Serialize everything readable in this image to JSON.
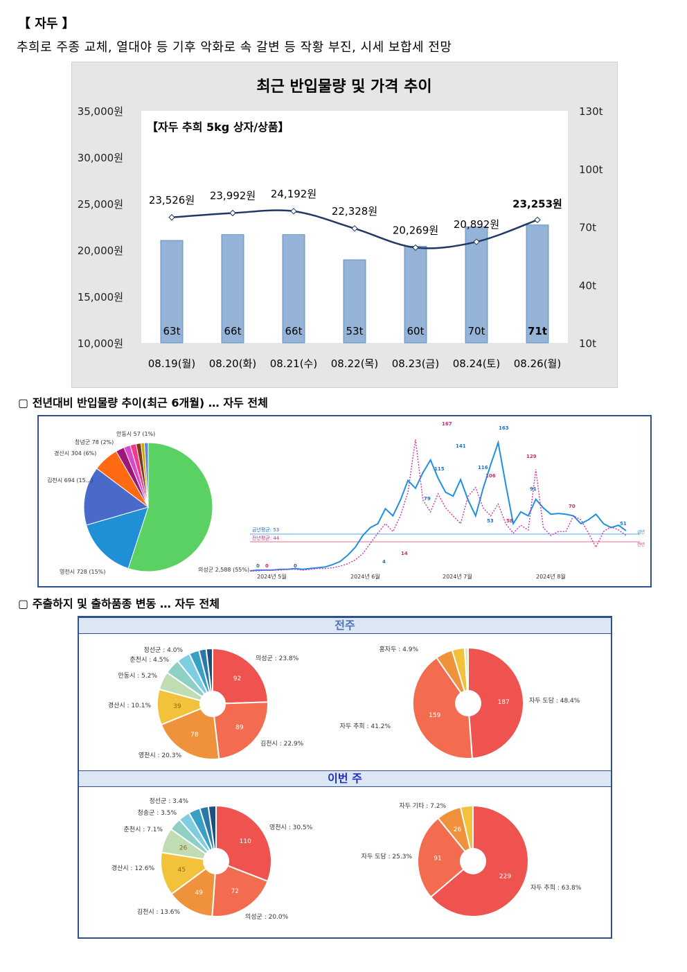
{
  "section": {
    "title": "【 자두 】",
    "description": "추희로 주종 교체, 열대야 등 기후 악화로 속 갈변 등 작황 부진, 시세 보합세 전망"
  },
  "chart_data": [
    {
      "type": "bar",
      "title": "최근 반입물량 및 가격 추이",
      "subtitle": "【자두 추희 5kg 상자/상품】",
      "categories": [
        "08.19(월)",
        "08.20(화)",
        "08.21(수)",
        "08.22(목)",
        "08.23(금)",
        "08.24(토)",
        "08.26(월)"
      ],
      "y_left_ticks": [
        "35,000원",
        "30,000원",
        "25,000원",
        "20,000원",
        "15,000원",
        "10,000원"
      ],
      "y_right_ticks": [
        "130t",
        "100t",
        "70t",
        "40t",
        "10t"
      ],
      "ylim_left": [
        10000,
        35000
      ],
      "ylim_right": [
        10,
        130
      ],
      "series": [
        {
          "name": "반입물량",
          "values": [
            63,
            66,
            66,
            53,
            60,
            70,
            71
          ],
          "labels": [
            "63t",
            "66t",
            "66t",
            "53t",
            "60t",
            "70t",
            "71t"
          ]
        },
        {
          "name": "가격",
          "values": [
            23526,
            23992,
            24192,
            22328,
            20269,
            20892,
            23253
          ],
          "labels": [
            "23,526원",
            "23,992원",
            "24,192원",
            "22,328원",
            "20,269원",
            "20,892원",
            "23,253원"
          ]
        }
      ],
      "colors": {
        "bar": "#95b3d7",
        "bar_border": "#4f81bd",
        "line": "#1f3864"
      }
    },
    {
      "type": "pie",
      "title": "전년대비 반입물량 추이(최근 6개월) … 자두 전체",
      "slices": [
        {
          "label": "의성군 2,588 (55%)",
          "value": 2588,
          "color": "#5cd163"
        },
        {
          "label": "영천시 728 (15%)",
          "value": 728,
          "color": "#1f8fd6"
        },
        {
          "label": "김천시 694 (15...)",
          "value": 694,
          "color": "#4a6ac9"
        },
        {
          "label": "경산시 304 (6%)",
          "value": 304,
          "color": "#ff6a12"
        },
        {
          "label": "",
          "value": 100,
          "color": "#a0157a"
        },
        {
          "label": "창녕군 78 (2%)",
          "value": 78,
          "color": "#d94ac9"
        },
        {
          "label": "",
          "value": 70,
          "color": "#f2388a"
        },
        {
          "label": "안동시 57 (1%)",
          "value": 57,
          "color": "#7a3a1a"
        },
        {
          "label": "",
          "value": 40,
          "color": "#d6a400"
        },
        {
          "label": "",
          "value": 45,
          "color": "#5a8ad6"
        }
      ]
    },
    {
      "type": "line",
      "series": [
        {
          "name": "금년",
          "values": [
            0,
            1,
            1,
            1,
            2,
            2,
            3,
            2,
            3,
            4,
            5,
            8,
            12,
            20,
            30,
            45,
            55,
            60,
            79,
            70,
            90,
            115,
            105,
            125,
            141,
            118,
            100,
            95,
            116,
            90,
            70,
            105,
            135,
            163,
            110,
            60,
            75,
            70,
            91,
            80,
            72,
            73,
            72,
            70,
            60,
            65,
            72,
            60,
            55,
            58,
            51
          ],
          "color": "#1f8fe0"
        },
        {
          "name": "전년",
          "values": [
            0,
            0,
            1,
            1,
            1,
            2,
            2,
            1,
            2,
            3,
            3,
            4,
            6,
            9,
            14,
            22,
            35,
            48,
            60,
            50,
            70,
            100,
            167,
            90,
            75,
            98,
            80,
            70,
            60,
            95,
            106,
            80,
            70,
            85,
            60,
            48,
            58,
            52,
            129,
            55,
            45,
            50,
            50,
            70,
            65,
            48,
            30,
            50,
            56,
            52,
            45
          ],
          "color": "#cc33aa"
        }
      ],
      "point_labels": [
        "0",
        "0",
        "0",
        "4",
        "79",
        "115",
        "167",
        "141",
        "116",
        "106",
        "163",
        "53",
        "129",
        "91",
        "70",
        "51",
        "58",
        "14"
      ],
      "avg_labels": [
        "금년평균: 53",
        "전년평균: 44"
      ],
      "legend": [
        "금년",
        "전년"
      ],
      "x_ticks": [
        "2024년 5월",
        "2024년 6월",
        "2024년 7월",
        "2024년 8월"
      ]
    },
    {
      "type": "pie",
      "panel": "전주",
      "slices": [
        {
          "label": "의성군 : 23.8%",
          "value": 92,
          "value_label": "92",
          "color": "#ef5350"
        },
        {
          "label": "김천시 : 22.9%",
          "value": 89,
          "value_label": "89",
          "color": "#f36c4f"
        },
        {
          "label": "영천시 : 20.3%",
          "value": 78,
          "value_label": "78",
          "color": "#f0923c"
        },
        {
          "label": "경산시 : 10.1%",
          "value": 39,
          "value_label": "39",
          "color": "#f2c23a"
        },
        {
          "label": "안동시 : 5.2%",
          "value": 20,
          "value_label": "",
          "color": "#bfdcb2"
        },
        {
          "label": "춘천시 : 4.5%",
          "value": 17,
          "value_label": "",
          "color": "#8fd0c4"
        },
        {
          "label": "정선군 : 4.0%",
          "value": 15,
          "value_label": "",
          "color": "#7fcde0"
        },
        {
          "label": "",
          "value": 11,
          "value_label": "",
          "color": "#3a9fc4"
        },
        {
          "label": "",
          "value": 8,
          "value_label": "",
          "color": "#2a78a8"
        },
        {
          "label": "",
          "value": 7,
          "value_label": "",
          "color": "#1f4f80"
        }
      ]
    },
    {
      "type": "pie",
      "panel": "전주",
      "slices": [
        {
          "label": "자두 도담 : 48.4%",
          "value": 187,
          "value_label": "187",
          "color": "#ef5350"
        },
        {
          "label": "자두 추희 : 41.2%",
          "value": 159,
          "value_label": "159",
          "color": "#f36c4f"
        },
        {
          "label": "홍자두 : 4.9%",
          "value": 19,
          "value_label": "",
          "color": "#f0923c"
        },
        {
          "label": "",
          "value": 14,
          "value_label": "",
          "color": "#f2c23a"
        },
        {
          "label": "",
          "value": 4,
          "value_label": "",
          "color": "#e8e4c8"
        }
      ]
    },
    {
      "type": "pie",
      "panel": "이번 주",
      "slices": [
        {
          "label": "영천시 : 30.5%",
          "value": 110,
          "value_label": "110",
          "color": "#ef5350"
        },
        {
          "label": "의성군 : 20.0%",
          "value": 72,
          "value_label": "72",
          "color": "#f36c4f"
        },
        {
          "label": "김천시 : 13.6%",
          "value": 49,
          "value_label": "49",
          "color": "#f0923c"
        },
        {
          "label": "경산시 : 12.6%",
          "value": 45,
          "value_label": "45",
          "color": "#f2c23a"
        },
        {
          "label": "춘천시 : 7.1%",
          "value": 26,
          "value_label": "26",
          "color": "#bfdcb2"
        },
        {
          "label": "청송군 : 3.5%",
          "value": 13,
          "value_label": "",
          "color": "#8fd0c4"
        },
        {
          "label": "정선군 : 3.4%",
          "value": 12,
          "value_label": "",
          "color": "#7fcde0"
        },
        {
          "label": "",
          "value": 12,
          "value_label": "",
          "color": "#3a9fc4"
        },
        {
          "label": "",
          "value": 9,
          "value_label": "",
          "color": "#2a78a8"
        },
        {
          "label": "",
          "value": 8,
          "value_label": "",
          "color": "#1f4f80"
        }
      ]
    },
    {
      "type": "pie",
      "panel": "이번 주",
      "slices": [
        {
          "label": "자두 추희 : 63.8%",
          "value": 229,
          "value_label": "229",
          "color": "#ef5350"
        },
        {
          "label": "자두 도담 : 25.3%",
          "value": 91,
          "value_label": "91",
          "color": "#f36c4f"
        },
        {
          "label": "자두 기타 : 7.2%",
          "value": 26,
          "value_label": "26",
          "color": "#f0923c"
        },
        {
          "label": "",
          "value": 13,
          "value_label": "",
          "color": "#f2c23a"
        }
      ]
    }
  ],
  "headings": {
    "yoy": "▢ 전년대비 반입물량 추이(최근 6개월) … 자두 전체",
    "share": "▢ 주출하지 및 출하품종 변동 … 자두 전체"
  },
  "bands": {
    "prev_week": "전주",
    "this_week": "이번 주"
  }
}
